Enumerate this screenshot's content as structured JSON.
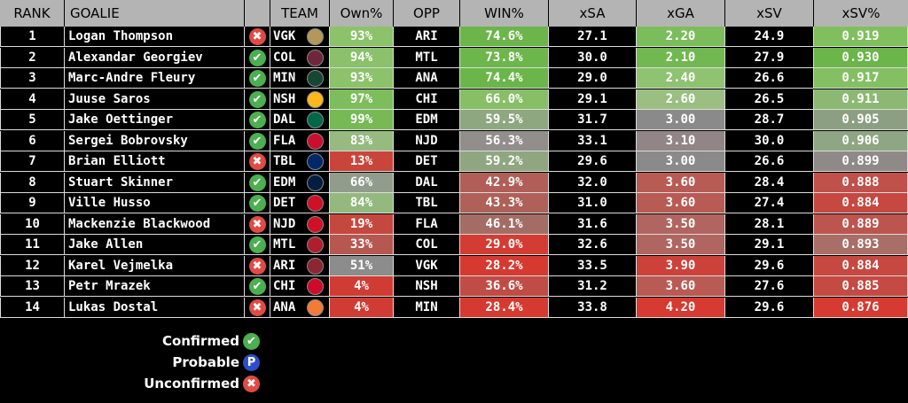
{
  "headers": {
    "rank": "RANK",
    "goalie": "GOALIE",
    "team": "TEAM",
    "own": "Own%",
    "opp": "OPP",
    "win": "WIN%",
    "xsa": "xSA",
    "xga": "xGA",
    "xsv": "xSV",
    "xsvp": "xSV%"
  },
  "rows": [
    {
      "rank": "1",
      "goalie": "Logan Thompson",
      "status": "unconfirmed",
      "team": "VGK",
      "logo_color": "#b4975a",
      "own": "93%",
      "own_color": "#8bc26a",
      "opp": "ARI",
      "win": "74.6%",
      "win_color": "#6bb54a",
      "xsa": "27.1",
      "xga": "2.20",
      "xga_color": "#7cbd5b",
      "xsv": "24.9",
      "xsvp": "0.919",
      "xsvp_color": "#80bf5e"
    },
    {
      "rank": "2",
      "goalie": "Alexandar Georgiev",
      "status": "confirmed",
      "team": "COL",
      "logo_color": "#6f263d",
      "own": "94%",
      "own_color": "#8ac16a",
      "opp": "MTL",
      "win": "73.8%",
      "win_color": "#6db64c",
      "xsa": "30.0",
      "xga": "2.10",
      "xga_color": "#70b84f",
      "xsv": "27.9",
      "xsvp": "0.930",
      "xsvp_color": "#6bb54a"
    },
    {
      "rank": "3",
      "goalie": "Marc-Andre Fleury",
      "status": "confirmed",
      "team": "MIN",
      "logo_color": "#154734",
      "own": "93%",
      "own_color": "#8bc26a",
      "opp": "ANA",
      "win": "74.4%",
      "win_color": "#6bb54a",
      "xsa": "29.0",
      "xga": "2.40",
      "xga_color": "#8fc271",
      "xsv": "26.6",
      "xsvp": "0.917",
      "xsvp_color": "#84bf63"
    },
    {
      "rank": "4",
      "goalie": "Juuse Saros",
      "status": "confirmed",
      "team": "NSH",
      "logo_color": "#ffb81c",
      "own": "97%",
      "own_color": "#7dbd5c",
      "opp": "CHI",
      "win": "66.0%",
      "win_color": "#86bf65",
      "xsa": "29.1",
      "xga": "2.60",
      "xga_color": "#9bbf83",
      "xsv": "26.5",
      "xsvp": "0.911",
      "xsvp_color": "#8bb973"
    },
    {
      "rank": "5",
      "goalie": "Jake Oettinger",
      "status": "confirmed",
      "team": "DAL",
      "logo_color": "#006847",
      "own": "99%",
      "own_color": "#76b955",
      "opp": "EDM",
      "win": "59.5%",
      "win_color": "#8fa780",
      "xsa": "31.7",
      "xga": "3.00",
      "xga_color": "#8a8a8a",
      "xsv": "28.7",
      "xsvp": "0.905",
      "xsvp_color": "#8d9f82"
    },
    {
      "rank": "6",
      "goalie": "Sergei Bobrovsky",
      "status": "confirmed",
      "team": "FLA",
      "logo_color": "#c8102e",
      "own": "83%",
      "own_color": "#96ba80",
      "opp": "NJD",
      "win": "56.3%",
      "win_color": "#918e8b",
      "xsa": "33.1",
      "xga": "3.10",
      "xga_color": "#928585",
      "xsv": "30.0",
      "xsvp": "0.906",
      "xsvp_color": "#8ea683"
    },
    {
      "rank": "7",
      "goalie": "Brian Elliott",
      "status": "unconfirmed",
      "team": "TBL",
      "logo_color": "#002868",
      "own": "13%",
      "own_color": "#c9453c",
      "opp": "DET",
      "win": "59.2%",
      "win_color": "#8fa680",
      "xsa": "29.6",
      "xga": "3.00",
      "xga_color": "#8a8a8a",
      "xsv": "26.6",
      "xsvp": "0.899",
      "xsvp_color": "#8f8a88"
    },
    {
      "rank": "8",
      "goalie": "Stuart Skinner",
      "status": "confirmed",
      "team": "EDM",
      "logo_color": "#041e42",
      "own": "66%",
      "own_color": "#929c8c",
      "opp": "DAL",
      "win": "42.9%",
      "win_color": "#b05e57",
      "xsa": "32.0",
      "xga": "3.60",
      "xga_color": "#b85b54",
      "xsv": "28.4",
      "xsvp": "0.888",
      "xsvp_color": "#bf504a"
    },
    {
      "rank": "9",
      "goalie": "Ville Husso",
      "status": "confirmed",
      "team": "DET",
      "logo_color": "#ce1126",
      "own": "84%",
      "own_color": "#94b97f",
      "opp": "TBL",
      "win": "43.3%",
      "win_color": "#ae6059",
      "xsa": "31.0",
      "xga": "3.60",
      "xga_color": "#b85b54",
      "xsv": "27.4",
      "xsvp": "0.884",
      "xsvp_color": "#c64841"
    },
    {
      "rank": "10",
      "goalie": "Mackenzie Blackwood",
      "status": "unconfirmed",
      "team": "NJD",
      "logo_color": "#ce1126",
      "own": "19%",
      "own_color": "#c5483f",
      "opp": "FLA",
      "win": "46.1%",
      "win_color": "#a36d66",
      "xsa": "31.6",
      "xga": "3.50",
      "xga_color": "#b06560",
      "xsv": "28.1",
      "xsvp": "0.889",
      "xsvp_color": "#bc554e"
    },
    {
      "rank": "11",
      "goalie": "Jake Allen",
      "status": "confirmed",
      "team": "MTL",
      "logo_color": "#af1e2d",
      "own": "33%",
      "own_color": "#b65850",
      "opp": "COL",
      "win": "29.0%",
      "win_color": "#d43b33",
      "xsa": "32.6",
      "xga": "3.50",
      "xga_color": "#b06560",
      "xsv": "29.1",
      "xsvp": "0.893",
      "xsvp_color": "#a86e67"
    },
    {
      "rank": "12",
      "goalie": "Karel Vejmelka",
      "status": "unconfirmed",
      "team": "ARI",
      "logo_color": "#8c2633",
      "own": "51%",
      "own_color": "#8c8c8c",
      "opp": "VGK",
      "win": "28.2%",
      "win_color": "#d6392f",
      "xsa": "33.5",
      "xga": "3.90",
      "xga_color": "#cc423a",
      "xsv": "29.6",
      "xsvp": "0.884",
      "xsvp_color": "#c64841"
    },
    {
      "rank": "13",
      "goalie": "Petr Mrazek",
      "status": "confirmed",
      "team": "CHI",
      "logo_color": "#cf0a2c",
      "own": "4%",
      "own_color": "#d03c34",
      "opp": "NSH",
      "win": "36.6%",
      "win_color": "#c04c45",
      "xsa": "31.2",
      "xga": "3.60",
      "xga_color": "#b85b54",
      "xsv": "27.6",
      "xsvp": "0.885",
      "xsvp_color": "#c44a43"
    },
    {
      "rank": "14",
      "goalie": "Lukas Dostal",
      "status": "unconfirmed",
      "team": "ANA",
      "logo_color": "#f47a38",
      "own": "4%",
      "own_color": "#d03c34",
      "opp": "MIN",
      "win": "28.4%",
      "win_color": "#d6392f",
      "xsa": "33.8",
      "xga": "4.20",
      "xga_color": "#d63a30",
      "xsv": "29.6",
      "xsvp": "0.876",
      "xsvp_color": "#d63a30"
    }
  ],
  "legend": [
    {
      "label": "Confirmed",
      "status": "confirmed"
    },
    {
      "label": "Probable",
      "status": "probable"
    },
    {
      "label": "Unconfirmed",
      "status": "unconfirmed"
    }
  ],
  "status_glyphs": {
    "confirmed": "✔",
    "unconfirmed": "✖",
    "probable": "P"
  }
}
